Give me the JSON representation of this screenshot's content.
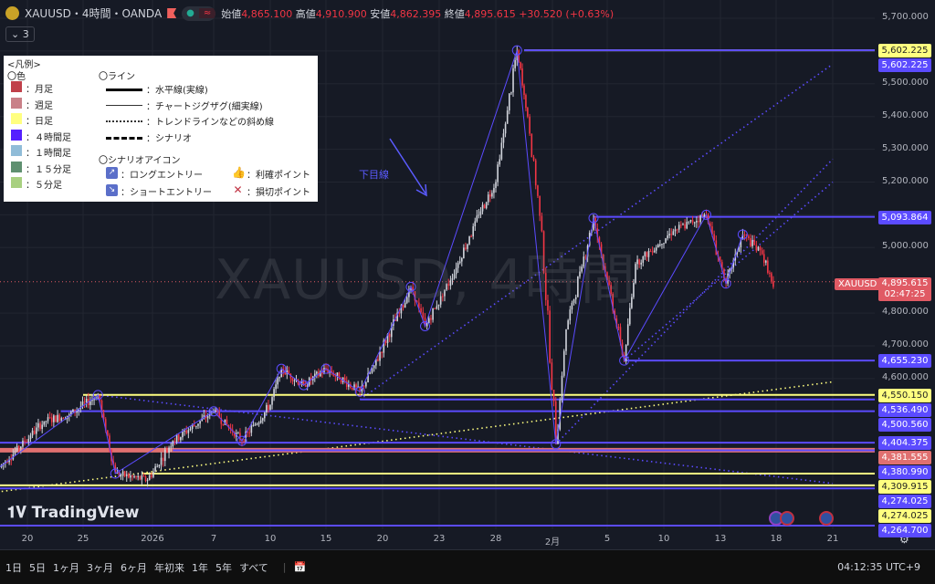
{
  "header": {
    "symbol": "XAUUSD・4時間・OANDA",
    "open_label": "始値",
    "open": "4,865.100",
    "high_label": "高値",
    "high": "4,910.900",
    "low_label": "安値",
    "low": "4,862.395",
    "close_label": "終値",
    "close": "4,895.615",
    "change": "+30.520 (+0.63%)",
    "indicator_count": "3"
  },
  "legend": {
    "title": "<凡例>",
    "colors_title": "〇色",
    "colors": [
      {
        "label": "：月足",
        "color": "#c0404a"
      },
      {
        "label": "：週足",
        "color": "#c98088"
      },
      {
        "label": "：日足",
        "color": "#ffff80"
      },
      {
        "label": "：４時間足",
        "color": "#5520ff"
      },
      {
        "label": "：１時間足",
        "color": "#90bcd8"
      },
      {
        "label": "：１５分足",
        "color": "#5f9070"
      },
      {
        "label": "：５分足",
        "color": "#a8d080"
      }
    ],
    "lines_title": "〇ライン",
    "lines": [
      "：水平線(実線)",
      "：チャートジグザグ(細実線)",
      "：トレンドラインなどの斜め線",
      "：シナリオ"
    ],
    "icons_title": "〇シナリオアイコン",
    "icons": [
      "：ロングエントリー",
      "：ショートエントリー",
      "：利確ポイント",
      "：損切ポイント"
    ]
  },
  "watermark": "XAUUSD, 4時間",
  "annotation": "下目線",
  "brand": "TradingView",
  "price_axis": {
    "ticks": [
      5700,
      5600,
      5500,
      5400,
      5300,
      5200,
      5100,
      5000,
      4800,
      4700,
      4600
    ],
    "tick_labels": [
      "5,700.000",
      "5,500.000",
      "5,400.000",
      "5,300.000",
      "5,200.000",
      "5,000.000",
      "4,800.000",
      "4,700.000",
      "4,600.000"
    ],
    "tick_values": [
      5700,
      5500,
      5400,
      5300,
      5200,
      5000,
      4800,
      4700,
      4600
    ]
  },
  "current": {
    "symbol": "XAUUSD",
    "price": "4,895.615",
    "countdown": "02:47:25",
    "value": 4895.615
  },
  "levels": [
    {
      "label": "5,602.225",
      "price": 5602.225,
      "color": "#ffff80",
      "from": "2026-01-30T00"
    },
    {
      "label": "5,602.225",
      "price": 5602.225,
      "color": "#5b4bff",
      "from": "2026-01-30T00",
      "nolabel_line": true
    },
    {
      "label": "5,093.864",
      "price": 5093.864,
      "color": "#5b4bff",
      "from": "2026-02-04T00"
    },
    {
      "label": "4,655.230",
      "price": 4655.23,
      "color": "#5b4bff",
      "from": "2026-02-06T12"
    },
    {
      "label": "4,550.150",
      "price": 4550.15,
      "color": "#ffff80",
      "from": "2025-12-25T00"
    },
    {
      "label": "4,536.490",
      "price": 4536.49,
      "color": "#5b4bff",
      "from": "2026-01-18T00"
    },
    {
      "label": "4,500.560",
      "price": 4500.56,
      "color": "#5b4bff",
      "from": "2025-12-23T00"
    },
    {
      "label": "4,404.375",
      "price": 4404.375,
      "color": "#5b4bff",
      "from": "2025-12-12T00"
    },
    {
      "label": "4,381.555",
      "price": 4381.555,
      "color": "#e07070",
      "from": "2025-12-12T00"
    },
    {
      "label": "4,380.990",
      "price": 4380.99,
      "color": "#5b4bff",
      "from": "2026-01-03T00"
    },
    {
      "label": "4,309.915",
      "price": 4309.915,
      "color": "#ffff80",
      "from": "2025-12-31T00"
    },
    {
      "label": "4,274.025",
      "price": 4274.025,
      "color": "#5b4bff",
      "from": "2025-12-12T00"
    },
    {
      "label": "4,274.025",
      "price": 4274.025,
      "color": "#ffff80",
      "from": "2025-12-12T00"
    },
    {
      "label": "4,264.700",
      "price": 4264.7,
      "color": "#5b4bff",
      "from": "2025-12-12T00"
    }
  ],
  "time_axis": [
    {
      "label": "20",
      "date": "2025-12-20T00"
    },
    {
      "label": "25",
      "date": "2025-12-25T00"
    },
    {
      "label": "2026",
      "date": "2026-01-01T00"
    },
    {
      "label": "7",
      "date": "2026-01-07T00"
    },
    {
      "label": "10",
      "date": "2026-01-10T00"
    },
    {
      "label": "15",
      "date": "2026-01-15T00"
    },
    {
      "label": "20",
      "date": "2026-01-20T00"
    },
    {
      "label": "23",
      "date": "2026-01-23T00"
    },
    {
      "label": "28",
      "date": "2026-01-28T00"
    },
    {
      "label": "2月",
      "date": "2026-02-01T00"
    },
    {
      "label": "5",
      "date": "2026-02-05T00"
    },
    {
      "label": "10",
      "date": "2026-02-10T00"
    },
    {
      "label": "13",
      "date": "2026-02-13T00"
    },
    {
      "label": "18",
      "date": "2026-02-18T00"
    },
    {
      "label": "21",
      "date": "2026-02-21T00"
    }
  ],
  "price_path": [
    [
      "2025-12-17T12",
      4330
    ],
    [
      "2025-12-21T12",
      4470
    ],
    [
      "2025-12-23T18",
      4490
    ],
    [
      "2025-12-26T12",
      4550
    ],
    [
      "2025-12-28T06",
      4310
    ],
    [
      "2025-12-31T12",
      4290
    ],
    [
      "2026-01-03T00",
      4410
    ],
    [
      "2026-01-07T00",
      4500
    ],
    [
      "2026-01-08T12",
      4410
    ],
    [
      "2026-01-10T00",
      4520
    ],
    [
      "2026-01-11T00",
      4630
    ],
    [
      "2026-01-13T00",
      4580
    ],
    [
      "2026-01-15T00",
      4630
    ],
    [
      "2026-01-18T00",
      4560
    ],
    [
      "2026-01-19T06",
      4640
    ],
    [
      "2026-01-21T12",
      4880
    ],
    [
      "2026-01-22T06",
      4760
    ],
    [
      "2026-01-24T00",
      4900
    ],
    [
      "2026-01-26T12",
      5100
    ],
    [
      "2026-01-28T00",
      5200
    ],
    [
      "2026-01-29T12",
      5602
    ],
    [
      "2026-01-30T06",
      5400
    ],
    [
      "2026-01-31T06",
      5050
    ],
    [
      "2026-02-01T06",
      4400
    ],
    [
      "2026-02-02T00",
      4750
    ],
    [
      "2026-02-04T00",
      5090
    ],
    [
      "2026-02-05T00",
      4900
    ],
    [
      "2026-02-06T12",
      4655
    ],
    [
      "2026-02-07T12",
      4950
    ],
    [
      "2026-02-10T12",
      5050
    ],
    [
      "2026-02-12T06",
      5100
    ],
    [
      "2026-02-13T12",
      4890
    ],
    [
      "2026-02-15T00",
      5040
    ],
    [
      "2026-02-16T18",
      4980
    ],
    [
      "2026-02-17T18",
      4880
    ]
  ],
  "zigzag": [
    [
      "2025-12-17T12",
      4330
    ],
    [
      "2025-12-26T12",
      4550
    ],
    [
      "2025-12-28T06",
      4310
    ],
    [
      "2026-01-07T00",
      4500
    ],
    [
      "2026-01-08T12",
      4410
    ],
    [
      "2026-01-11T00",
      4630
    ],
    [
      "2026-01-13T00",
      4580
    ],
    [
      "2026-01-15T00",
      4630
    ],
    [
      "2026-01-18T00",
      4560
    ],
    [
      "2026-01-21T12",
      4880
    ],
    [
      "2026-01-22T06",
      4760
    ],
    [
      "2026-01-29T12",
      5602
    ],
    [
      "2026-02-01T06",
      4400
    ],
    [
      "2026-02-04T00",
      5090
    ],
    [
      "2026-02-06T12",
      4655
    ],
    [
      "2026-02-12T06",
      5100
    ],
    [
      "2026-02-13T12",
      4890
    ],
    [
      "2026-02-15T00",
      5040
    ]
  ],
  "trendlines": [
    {
      "from": [
        "2026-01-18T00",
        4536
      ],
      "to": [
        "2026-02-21T00",
        5560
      ],
      "color": "#5b4bff"
    },
    {
      "from": [
        "2026-02-01T06",
        4400
      ],
      "to": [
        "2026-02-21T00",
        5270
      ],
      "color": "#5b4bff"
    },
    {
      "from": [
        "2026-02-06T12",
        4655
      ],
      "to": [
        "2026-02-21T00",
        5200
      ],
      "color": "#5b4bff"
    },
    {
      "from": [
        "2025-12-12T00",
        4230
      ],
      "to": [
        "2026-02-21T00",
        4590
      ],
      "color": "#ffff80"
    },
    {
      "from": [
        "2025-12-26T12",
        4550
      ],
      "to": [
        "2026-02-21T00",
        4280
      ],
      "color": "#5b4bff"
    }
  ],
  "bottom_bar": {
    "ranges": [
      "1日",
      "5日",
      "1ヶ月",
      "3ヶ月",
      "6ヶ月",
      "年初来",
      "1年",
      "5年",
      "すべて"
    ],
    "clock": "04:12:35 UTC+9"
  },
  "colors": {
    "up": "#d1d4dc",
    "down": "#f23645",
    "background": "#161a25"
  }
}
